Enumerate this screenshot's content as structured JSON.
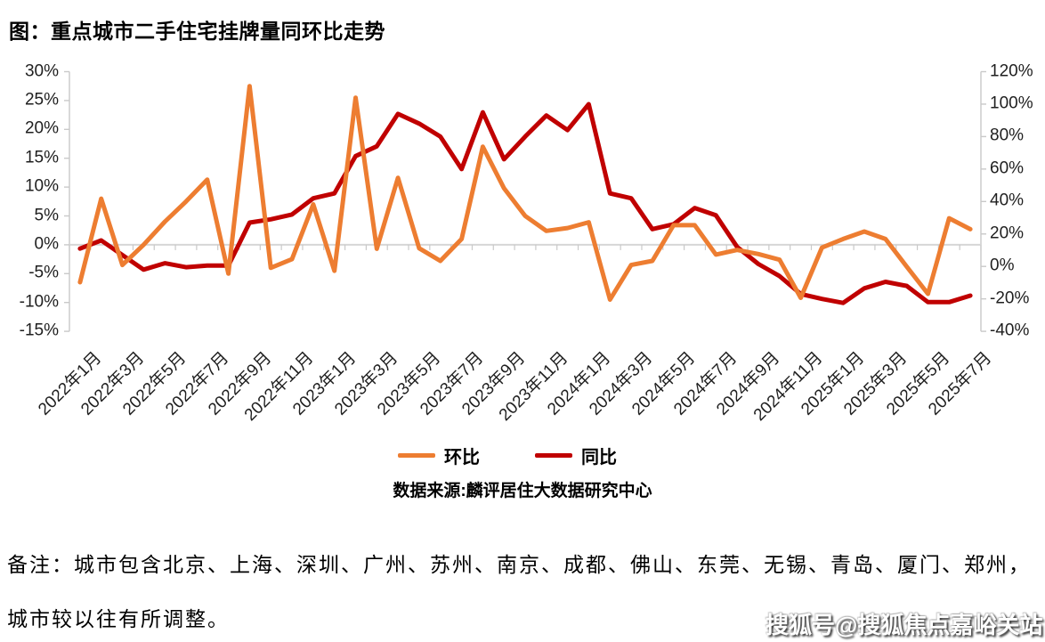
{
  "title": "图：重点城市二手住宅挂牌量同环比走势",
  "chart_data": {
    "type": "line",
    "x": [
      "2022年1月",
      "2022年2月",
      "2022年3月",
      "2022年4月",
      "2022年5月",
      "2022年6月",
      "2022年7月",
      "2022年8月",
      "2022年9月",
      "2022年10月",
      "2022年11月",
      "2022年12月",
      "2023年1月",
      "2023年2月",
      "2023年3月",
      "2023年4月",
      "2023年5月",
      "2023年6月",
      "2023年7月",
      "2023年8月",
      "2023年9月",
      "2023年10月",
      "2023年11月",
      "2023年12月",
      "2024年1月",
      "2024年2月",
      "2024年3月",
      "2024年4月",
      "2024年5月",
      "2024年6月",
      "2024年7月",
      "2024年8月",
      "2024年9月",
      "2024年10月",
      "2024年11月",
      "2024年12月",
      "2025年1月",
      "2025年2月",
      "2025年3月",
      "2025年4月",
      "2025年5月",
      "2025年6月",
      "2025年7月"
    ],
    "x_label_step": 2,
    "series": [
      {
        "name": "环比",
        "axis": "left",
        "color": "#ED7D31",
        "values": [
          -6.5,
          8,
          -3.5,
          0,
          4,
          7.5,
          11.3,
          -5,
          27.5,
          -4,
          -2.5,
          7,
          -4.5,
          25.5,
          -0.7,
          11.6,
          -0.6,
          -2.8,
          1,
          17,
          9.8,
          5,
          2.4,
          2.9,
          3.9,
          -9.5,
          -3.5,
          -2.8,
          3.4,
          3.4,
          -1.7,
          -0.9,
          -1.6,
          -2.6,
          -9.2,
          -0.5,
          1,
          2.3,
          1,
          -3.8,
          -8.5,
          4.6,
          2.7
        ]
      },
      {
        "name": "同比",
        "axis": "right",
        "color": "#C00000",
        "values": [
          11,
          16,
          7,
          -2,
          2,
          -0.5,
          0.5,
          0.5,
          27,
          29,
          32,
          42,
          45,
          68,
          74,
          94,
          88,
          80,
          60,
          95,
          66,
          80,
          93,
          84,
          100,
          45,
          42,
          23,
          26,
          36,
          31.5,
          12,
          1.5,
          -6,
          -17,
          -20,
          -22.5,
          -13.5,
          -9.5,
          -12,
          -22,
          -22,
          -18
        ]
      }
    ],
    "left_axis": {
      "min": -15,
      "max": 30,
      "step": 5,
      "ticks": [
        "30%",
        "25%",
        "20%",
        "15%",
        "10%",
        "5%",
        "0%",
        "-5%",
        "-10%",
        "-15%"
      ]
    },
    "right_axis": {
      "min": -40,
      "max": 120,
      "step": 20,
      "ticks": [
        "120%",
        "100%",
        "80%",
        "60%",
        "40%",
        "20%",
        "0%",
        "-20%",
        "-40%"
      ]
    },
    "grid": "zero-line-only",
    "legend_position": "bottom",
    "source": "数据来源:麟评居住大数据研究中心"
  },
  "notes": {
    "line1": "备注：城市包含北京、上海、深圳、广州、苏州、南京、成都、佛山、东莞、无锡、青岛、厦门、郑州，",
    "line2": "城市较以往有所调整。"
  },
  "watermark": "搜狐号@搜狐焦点嘉峪关站",
  "colors": {
    "huanbi": "#ED7D31",
    "tongbi": "#C00000",
    "gridline": "#D6D6D6",
    "axis": "#C9C9C9"
  }
}
